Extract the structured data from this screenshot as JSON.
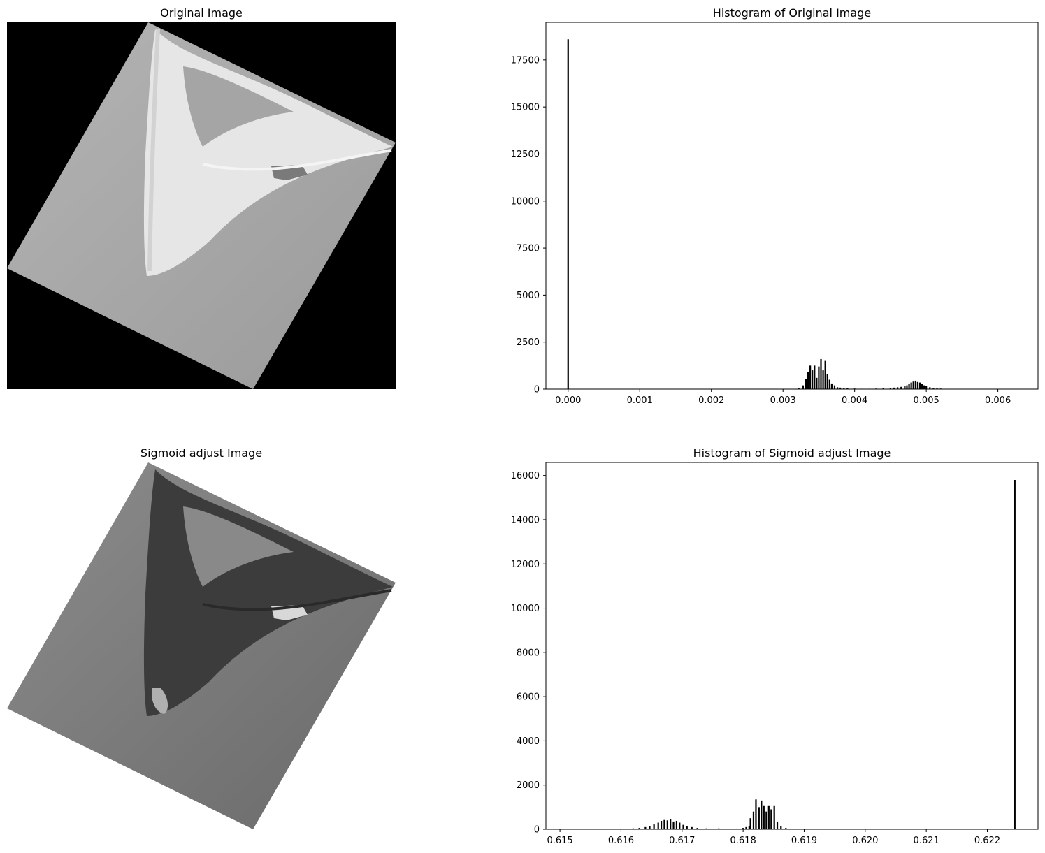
{
  "panels": {
    "original_title": "Original Image",
    "sigmoid_title": "Sigmoid adjust Image"
  },
  "chart_data": [
    {
      "type": "bar",
      "title": "Histogram of Original Image",
      "xlabel": "",
      "ylabel": "",
      "xlim": [
        -0.00031,
        0.00656
      ],
      "ylim": [
        0,
        19500
      ],
      "xticks": [
        0.0,
        0.001,
        0.002,
        0.003,
        0.004,
        0.005,
        0.006
      ],
      "xtick_labels": [
        "0.000",
        "0.001",
        "0.002",
        "0.003",
        "0.004",
        "0.005",
        "0.006"
      ],
      "yticks": [
        0,
        2500,
        5000,
        7500,
        10000,
        12500,
        15000,
        17500
      ],
      "ytick_labels": [
        "0",
        "2500",
        "5000",
        "7500",
        "10000",
        "12500",
        "15000",
        "17500"
      ],
      "bar_color": "#000000",
      "x": [
        0.0,
        0.00322,
        0.00328,
        0.00332,
        0.00335,
        0.00338,
        0.00341,
        0.00344,
        0.00347,
        0.0035,
        0.00353,
        0.00356,
        0.00359,
        0.00362,
        0.00365,
        0.00368,
        0.00372,
        0.00376,
        0.0038,
        0.00385,
        0.0039,
        0.004,
        0.0041,
        0.0042,
        0.0043,
        0.0044,
        0.0045,
        0.00455,
        0.0046,
        0.00465,
        0.0047,
        0.00473,
        0.00476,
        0.00479,
        0.00482,
        0.00485,
        0.00488,
        0.00491,
        0.00494,
        0.00497,
        0.005,
        0.00505,
        0.0051,
        0.00515,
        0.0052,
        0.0053
      ],
      "values": [
        18600,
        60,
        200,
        550,
        900,
        1250,
        1000,
        1250,
        600,
        1200,
        1600,
        1000,
        1500,
        800,
        500,
        300,
        200,
        100,
        80,
        60,
        40,
        30,
        20,
        20,
        30,
        50,
        60,
        80,
        100,
        120,
        150,
        200,
        280,
        350,
        400,
        450,
        380,
        350,
        280,
        200,
        150,
        100,
        60,
        40,
        30,
        10
      ]
    },
    {
      "type": "bar",
      "title": "Histogram of Sigmoid adjust Image",
      "xlabel": "",
      "ylabel": "",
      "xlim": [
        0.61477,
        0.62283
      ],
      "ylim": [
        0,
        16590
      ],
      "xticks": [
        0.615,
        0.616,
        0.617,
        0.618,
        0.619,
        0.62,
        0.621,
        0.622
      ],
      "xtick_labels": [
        "0.615",
        "0.616",
        "0.617",
        "0.618",
        "0.619",
        "0.620",
        "0.621",
        "0.622"
      ],
      "yticks": [
        0,
        2000,
        4000,
        6000,
        8000,
        10000,
        12000,
        14000,
        16000
      ],
      "ytick_labels": [
        "0",
        "2000",
        "4000",
        "6000",
        "8000",
        "10000",
        "12000",
        "14000",
        "16000"
      ],
      "bar_color": "#000000",
      "x": [
        0.6161,
        0.6162,
        0.6163,
        0.6164,
        0.61647,
        0.61654,
        0.61661,
        0.61666,
        0.61671,
        0.61676,
        0.61681,
        0.61686,
        0.61691,
        0.61696,
        0.61702,
        0.61708,
        0.61716,
        0.61725,
        0.6174,
        0.6176,
        0.6178,
        0.618,
        0.6181,
        0.61805,
        0.61812,
        0.61817,
        0.61821,
        0.61826,
        0.6183,
        0.61834,
        0.61838,
        0.61842,
        0.61846,
        0.61851,
        0.61856,
        0.61862,
        0.6187,
        0.6188,
        0.62245
      ],
      "values": [
        20,
        40,
        60,
        100,
        150,
        220,
        300,
        380,
        420,
        400,
        450,
        350,
        380,
        300,
        200,
        150,
        100,
        60,
        40,
        40,
        30,
        60,
        150,
        100,
        500,
        800,
        1350,
        1000,
        1300,
        1050,
        800,
        1050,
        900,
        1050,
        350,
        150,
        60,
        20,
        15800
      ]
    }
  ]
}
